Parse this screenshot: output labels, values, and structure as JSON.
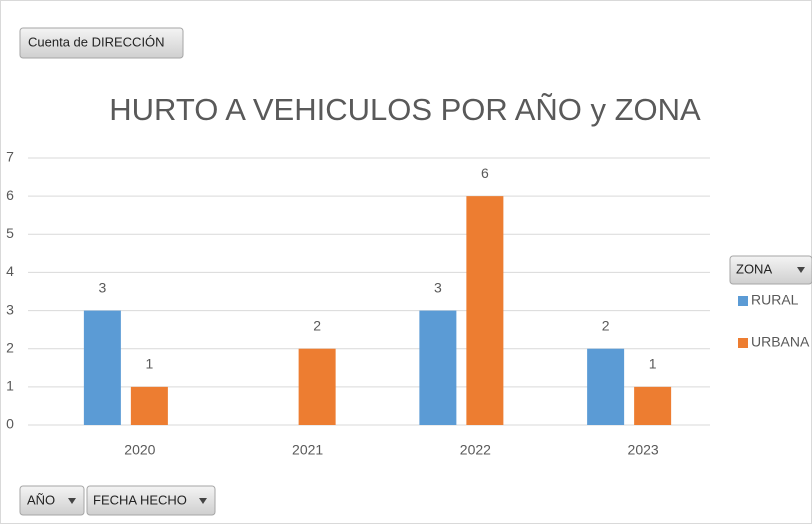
{
  "chart_data": {
    "type": "bar",
    "title": "HURTO A VEHICULOS POR AÑO y ZONA",
    "value_field": "Cuenta de DIRECCIÓN",
    "legend_title": "ZONA",
    "axis_fields": [
      "AÑO",
      "FECHA HECHO"
    ],
    "categories": [
      "2020",
      "2021",
      "2022",
      "2023"
    ],
    "series": [
      {
        "name": "RURAL",
        "color": "#5b9bd5",
        "values": [
          3,
          null,
          3,
          2
        ]
      },
      {
        "name": "URBANA",
        "color": "#ed7d31",
        "values": [
          1,
          2,
          6,
          1
        ]
      }
    ],
    "ylim": [
      0,
      7
    ],
    "yticks": [
      0,
      1,
      2,
      3,
      4,
      5,
      6,
      7
    ],
    "grid": true,
    "legend": "right"
  }
}
